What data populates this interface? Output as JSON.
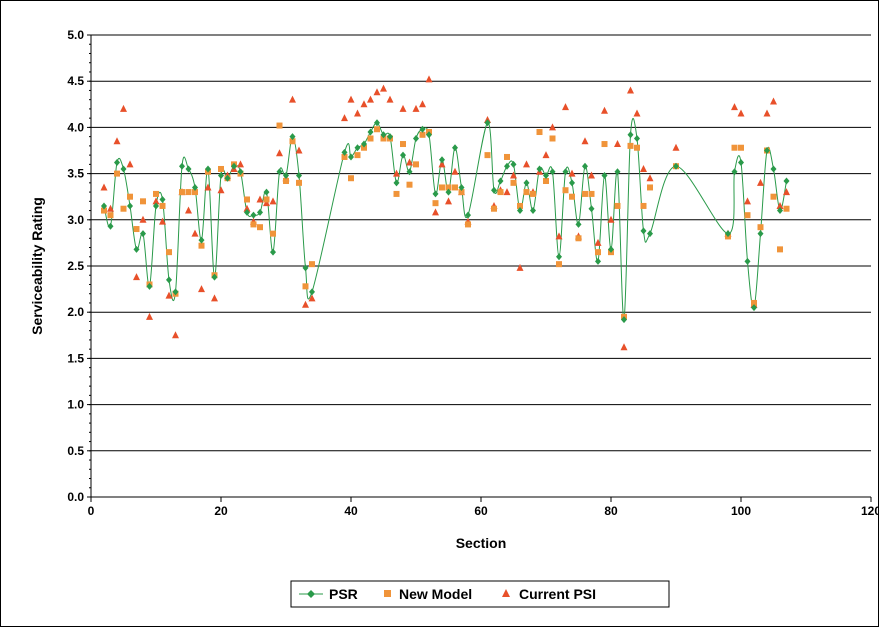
{
  "chart_data": {
    "type": "scatter",
    "xlabel": "Section",
    "ylabel": "Serviceability Rating",
    "xlim": [
      0,
      120
    ],
    "ylim": [
      0.0,
      5.0
    ],
    "x_ticks": [
      "0",
      "20",
      "40",
      "60",
      "80",
      "100",
      "120"
    ],
    "y_ticks": [
      "0.0",
      "0.5",
      "1.0",
      "1.5",
      "2.0",
      "2.5",
      "3.0",
      "3.5",
      "4.0",
      "4.5",
      "5.0"
    ],
    "grid": "horizontal major lines",
    "legend_position": "bottom",
    "series": [
      {
        "name": "PSR",
        "marker": "diamond",
        "line": "smoothed",
        "color": "#2a9a4a",
        "x": [
          2,
          3,
          4,
          5,
          6,
          7,
          8,
          9,
          10,
          11,
          12,
          13,
          14,
          15,
          16,
          17,
          18,
          19,
          20,
          21,
          22,
          23,
          24,
          25,
          26,
          27,
          28,
          29,
          30,
          31,
          32,
          33,
          34,
          39,
          40,
          41,
          42,
          43,
          44,
          45,
          46,
          47,
          48,
          49,
          50,
          51,
          52,
          53,
          54,
          55,
          56,
          57,
          58,
          61,
          62,
          63,
          64,
          65,
          66,
          67,
          68,
          69,
          70,
          71,
          72,
          73,
          74,
          75,
          76,
          77,
          78,
          79,
          80,
          81,
          82,
          83,
          84,
          85,
          86,
          90,
          98,
          99,
          100,
          101,
          102,
          103,
          104,
          105,
          106,
          107
        ],
        "y": [
          3.15,
          2.93,
          3.62,
          3.55,
          3.15,
          2.68,
          2.85,
          2.28,
          3.15,
          3.22,
          2.35,
          2.22,
          3.58,
          3.55,
          3.35,
          2.78,
          3.55,
          2.38,
          3.48,
          3.45,
          3.58,
          3.52,
          3.08,
          3.05,
          3.08,
          3.3,
          2.65,
          3.52,
          3.48,
          3.9,
          3.48,
          2.48,
          2.22,
          3.73,
          3.68,
          3.78,
          3.82,
          3.95,
          4.05,
          3.92,
          3.9,
          3.4,
          3.7,
          3.52,
          3.88,
          3.98,
          3.92,
          3.28,
          3.65,
          3.3,
          3.78,
          3.35,
          3.05,
          4.05,
          3.32,
          3.42,
          3.58,
          3.6,
          3.1,
          3.4,
          3.1,
          3.55,
          3.48,
          3.52,
          2.6,
          3.52,
          3.4,
          2.95,
          3.58,
          3.12,
          2.55,
          3.48,
          2.68,
          3.52,
          1.92,
          3.92,
          3.88,
          2.88,
          2.85,
          3.58,
          2.85,
          3.52,
          3.62,
          2.55,
          2.05,
          2.85,
          3.75,
          3.55,
          3.1,
          3.42
        ]
      },
      {
        "name": "New Model",
        "marker": "square",
        "color": "#f0943a",
        "x": [
          2,
          3,
          4,
          5,
          6,
          7,
          8,
          9,
          10,
          11,
          12,
          13,
          14,
          15,
          16,
          17,
          18,
          19,
          20,
          21,
          22,
          23,
          24,
          25,
          26,
          27,
          28,
          29,
          30,
          31,
          32,
          33,
          34,
          39,
          40,
          41,
          42,
          43,
          44,
          45,
          46,
          47,
          48,
          49,
          50,
          51,
          52,
          53,
          54,
          55,
          56,
          57,
          58,
          61,
          62,
          63,
          64,
          65,
          66,
          67,
          68,
          69,
          70,
          71,
          72,
          73,
          74,
          75,
          76,
          77,
          78,
          79,
          80,
          81,
          82,
          83,
          84,
          85,
          86,
          90,
          98,
          99,
          100,
          101,
          102,
          103,
          104,
          105,
          106,
          107
        ],
        "y": [
          3.1,
          3.05,
          3.5,
          3.12,
          3.25,
          2.9,
          3.2,
          2.3,
          3.28,
          3.15,
          2.65,
          2.2,
          3.3,
          3.3,
          3.3,
          2.72,
          3.52,
          2.4,
          3.55,
          3.45,
          3.6,
          3.5,
          3.22,
          2.95,
          2.92,
          3.22,
          2.85,
          4.02,
          3.42,
          3.85,
          3.4,
          2.28,
          2.52,
          3.68,
          3.45,
          3.7,
          3.78,
          3.88,
          3.98,
          3.88,
          3.88,
          3.28,
          3.82,
          3.38,
          3.6,
          3.92,
          3.95,
          3.18,
          3.35,
          3.35,
          3.35,
          3.3,
          2.95,
          3.7,
          3.12,
          3.3,
          3.68,
          3.4,
          3.15,
          3.3,
          3.28,
          3.95,
          3.42,
          3.88,
          2.52,
          3.32,
          3.25,
          2.8,
          3.28,
          3.28,
          2.65,
          3.82,
          2.65,
          3.15,
          1.95,
          3.8,
          3.78,
          3.15,
          3.35,
          3.58,
          2.82,
          3.78,
          3.78,
          3.05,
          2.1,
          2.92,
          3.75,
          3.25,
          2.68,
          3.12
        ]
      },
      {
        "name": "Current PSI",
        "marker": "triangle",
        "color": "#e8502a",
        "x": [
          2,
          3,
          4,
          5,
          6,
          7,
          8,
          9,
          10,
          11,
          12,
          13,
          14,
          15,
          16,
          17,
          18,
          19,
          20,
          21,
          22,
          23,
          24,
          25,
          26,
          27,
          28,
          29,
          30,
          31,
          32,
          33,
          34,
          39,
          40,
          41,
          42,
          43,
          44,
          45,
          46,
          47,
          48,
          49,
          50,
          51,
          52,
          53,
          54,
          55,
          56,
          57,
          58,
          61,
          62,
          63,
          64,
          65,
          66,
          67,
          68,
          69,
          70,
          71,
          72,
          73,
          74,
          75,
          76,
          77,
          78,
          79,
          80,
          81,
          82,
          83,
          84,
          85,
          86,
          90,
          98,
          99,
          100,
          101,
          102,
          103,
          104,
          105,
          106,
          107
        ],
        "y": [
          3.35,
          3.12,
          3.85,
          4.2,
          3.6,
          2.38,
          3.0,
          1.95,
          3.2,
          2.98,
          2.18,
          1.75,
          3.3,
          3.1,
          2.85,
          2.25,
          3.35,
          2.15,
          3.32,
          3.48,
          3.55,
          3.6,
          3.12,
          2.98,
          3.22,
          3.18,
          3.2,
          3.72,
          3.45,
          4.3,
          3.75,
          2.08,
          2.15,
          4.1,
          4.3,
          4.15,
          4.25,
          4.3,
          4.38,
          4.42,
          4.3,
          3.5,
          4.2,
          3.62,
          4.2,
          4.25,
          4.52,
          3.08,
          3.6,
          3.2,
          3.52,
          3.3,
          2.98,
          4.08,
          3.15,
          3.32,
          3.3,
          3.48,
          2.48,
          3.6,
          3.3,
          3.52,
          3.7,
          4.0,
          2.82,
          4.22,
          3.5,
          2.82,
          3.85,
          3.48,
          2.75,
          4.18,
          3.0,
          3.82,
          1.62,
          4.4,
          4.15,
          3.55,
          3.45,
          3.78,
          2.85,
          4.22,
          4.15,
          3.2,
          2.08,
          3.4,
          4.15,
          4.28,
          3.15,
          3.3
        ]
      }
    ]
  }
}
